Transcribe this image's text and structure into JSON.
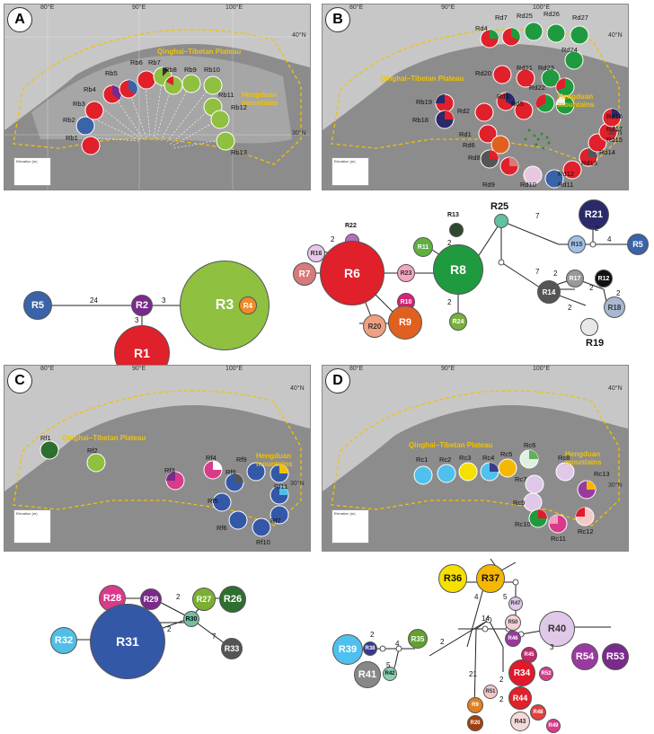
{
  "panels": {
    "A": {
      "label": "A"
    },
    "B": {
      "label": "B"
    },
    "C": {
      "label": "C"
    },
    "D": {
      "label": "D"
    }
  },
  "axes": {
    "lon": [
      "80°E",
      "90°E",
      "100°E"
    ],
    "lat": [
      "40°N",
      "30°N"
    ]
  },
  "regions": {
    "qtp": "Qinghai–Tibetan Plateau",
    "hengduan_line1": "Hengduan",
    "hengduan_line2": "mountains"
  },
  "legend": {
    "title": "Elevation (m)",
    "rows": [
      ">5000",
      "4000–5000",
      "3000–4000",
      "2000–3000",
      "1000–2000",
      "<1000"
    ]
  },
  "sites": {
    "A": [
      "Rb1",
      "Rb2",
      "Rb3",
      "Rb4",
      "Rb5",
      "Rb6",
      "Rb7",
      "Rb8",
      "Rb9",
      "Rb10",
      "Rb11",
      "Rb12",
      "Rb13"
    ],
    "B": [
      "Rb19",
      "Rb18",
      "Rd1",
      "Rd2",
      "Rd3",
      "Rd4",
      "Rd5",
      "Rd6",
      "Rd7",
      "Rd8",
      "Rd9",
      "Rd10",
      "Rd11",
      "Rd12",
      "Rd13",
      "Rd14",
      "Rd15",
      "Rd16",
      "Rd17",
      "Rd20",
      "Rd21",
      "Rd22",
      "Rd23",
      "Rd24",
      "Rd25",
      "Rd26",
      "Rd27"
    ],
    "C": [
      "Rf1",
      "Rf2",
      "Rf3",
      "Rf4",
      "Rf5",
      "Rf6",
      "Rf7",
      "Rf8",
      "Rf9",
      "Rf10",
      "Rf11"
    ],
    "D": [
      "Rc1",
      "Rc2",
      "Rc3",
      "Rc4",
      "Rc5",
      "Rc6",
      "Rc7",
      "Rc8",
      "Rc9",
      "Rc10",
      "Rc11",
      "Rc12",
      "Rc13"
    ]
  },
  "networks": {
    "A": {
      "nodes": [
        "R5",
        "R2",
        "R3",
        "R4",
        "R1"
      ],
      "steps": [
        "24",
        "3",
        "3"
      ]
    },
    "B": {
      "nodes": [
        "R16",
        "R22",
        "R7",
        "R6",
        "R23",
        "R10",
        "R20",
        "R9",
        "R11",
        "R13",
        "R8",
        "R24",
        "R25",
        "R15",
        "R21",
        "R5",
        "R17",
        "R12",
        "R14",
        "R18",
        "R19"
      ],
      "steps": [
        "2",
        "2",
        "2",
        "7",
        "7",
        "4",
        "2",
        "2",
        "2",
        "2",
        "2"
      ]
    },
    "C": {
      "nodes": [
        "R28",
        "R29",
        "R27",
        "R26",
        "R30",
        "R32",
        "R31",
        "R33"
      ],
      "steps": [
        "2",
        "2",
        "7"
      ]
    },
    "D": {
      "nodes": [
        "R36",
        "R37",
        "R47",
        "R39",
        "R38",
        "R35",
        "R50",
        "R40",
        "R46",
        "R45",
        "R54",
        "R53",
        "R52",
        "R34",
        "R41",
        "R42",
        "R51",
        "R44",
        "R48",
        "R49",
        "R9",
        "R43",
        "R20"
      ],
      "steps": [
        "4",
        "5",
        "14",
        "2",
        "4",
        "2",
        "5",
        "3",
        "21",
        "2",
        "2"
      ]
    }
  },
  "colors": {
    "plateau_outline": "#f2c200",
    "R1": "#e0202a",
    "R2": "#7a2a8a",
    "R3": "#8fc040",
    "R4": "#f08a2a",
    "R5": "#3a63a8",
    "R6": "#e0202a",
    "R7": "#d87a7a",
    "R8": "#1f9a3e",
    "R9": "#e06020",
    "R21": "#2a2a6a",
    "R31": "#3458a8",
    "R32": "#4fbfe8",
    "R28": "#d93a8a",
    "R26": "#2e6e2e",
    "R27": "#7ab030",
    "R33": "#555555",
    "R36": "#f5e000",
    "R37": "#f5b800",
    "R39": "#50c0ee",
    "R40": "#e0c8e8",
    "R54": "#9a3aa0",
    "R53": "#7a2a8a",
    "R34": "#e01a2a"
  }
}
